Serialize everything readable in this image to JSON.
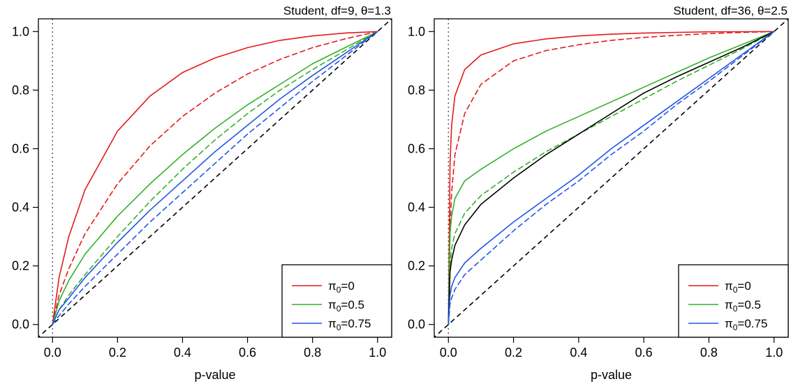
{
  "chart_data": [
    {
      "type": "line",
      "title": "Student, df=9, θ=1.3",
      "xlabel": "p-value",
      "ylabel": "",
      "xlim": [
        0,
        1
      ],
      "ylim": [
        0,
        1
      ],
      "xticks": [
        "0.0",
        "0.2",
        "0.4",
        "0.6",
        "0.8",
        "1.0"
      ],
      "yticks": [
        "0.0",
        "0.2",
        "0.4",
        "0.6",
        "0.8",
        "1.0"
      ],
      "grid": false,
      "legend_position": "bottom-right",
      "reference_lines": [
        {
          "kind": "diagonal",
          "style": "dashed",
          "color": "#000000"
        },
        {
          "kind": "vertical",
          "x": 0,
          "style": "dotted",
          "color": "#555555"
        }
      ],
      "x": [
        0,
        0.02,
        0.05,
        0.1,
        0.2,
        0.3,
        0.4,
        0.5,
        0.6,
        0.7,
        0.8,
        0.9,
        1.0
      ],
      "series": [
        {
          "legend": "0",
          "color": "#e41a1c",
          "style": "solid",
          "values": [
            0,
            0.16,
            0.3,
            0.46,
            0.66,
            0.78,
            0.86,
            0.91,
            0.945,
            0.97,
            0.985,
            0.995,
            1.0
          ]
        },
        {
          "legend": "",
          "color": "#e41a1c",
          "style": "dashed",
          "values": [
            0,
            0.1,
            0.19,
            0.31,
            0.48,
            0.61,
            0.71,
            0.79,
            0.855,
            0.905,
            0.945,
            0.975,
            1.0
          ]
        },
        {
          "legend": "0.5",
          "color": "#33b02a",
          "style": "solid",
          "values": [
            0,
            0.08,
            0.15,
            0.24,
            0.37,
            0.48,
            0.58,
            0.67,
            0.75,
            0.82,
            0.89,
            0.945,
            1.0
          ]
        },
        {
          "legend": "",
          "color": "#33b02a",
          "style": "dashed",
          "values": [
            0,
            0.05,
            0.1,
            0.17,
            0.3,
            0.42,
            0.53,
            0.63,
            0.72,
            0.8,
            0.87,
            0.935,
            1.0
          ]
        },
        {
          "legend": "0.75",
          "color": "#2255e6",
          "style": "solid",
          "values": [
            0,
            0.05,
            0.09,
            0.16,
            0.28,
            0.39,
            0.49,
            0.59,
            0.68,
            0.77,
            0.85,
            0.925,
            1.0
          ]
        },
        {
          "legend": "",
          "color": "#2255e6",
          "style": "dashed",
          "values": [
            0,
            0.03,
            0.07,
            0.13,
            0.24,
            0.35,
            0.45,
            0.55,
            0.65,
            0.74,
            0.83,
            0.915,
            1.0
          ]
        }
      ]
    },
    {
      "type": "line",
      "title": "Student, df=36, θ=2.5",
      "xlabel": "p-value",
      "ylabel": "",
      "xlim": [
        0,
        1
      ],
      "ylim": [
        0,
        1
      ],
      "xticks": [
        "0.0",
        "0.2",
        "0.4",
        "0.6",
        "0.8",
        "1.0"
      ],
      "yticks": [
        "0.0",
        "0.2",
        "0.4",
        "0.6",
        "0.8",
        "1.0"
      ],
      "grid": false,
      "legend_position": "bottom-right",
      "reference_lines": [
        {
          "kind": "diagonal",
          "style": "dashed",
          "color": "#000000"
        },
        {
          "kind": "vertical",
          "x": 0,
          "style": "dotted",
          "color": "#555555"
        }
      ],
      "x": [
        0,
        0.005,
        0.01,
        0.02,
        0.05,
        0.1,
        0.2,
        0.3,
        0.4,
        0.5,
        0.6,
        0.7,
        0.8,
        0.9,
        1.0
      ],
      "series": [
        {
          "legend": "0",
          "color": "#e41a1c",
          "style": "solid",
          "values": [
            0,
            0.55,
            0.68,
            0.78,
            0.87,
            0.92,
            0.958,
            0.975,
            0.985,
            0.991,
            0.995,
            0.997,
            0.999,
            0.9995,
            1.0
          ]
        },
        {
          "legend": "",
          "color": "#e41a1c",
          "style": "dashed",
          "values": [
            0,
            0.32,
            0.45,
            0.58,
            0.72,
            0.82,
            0.9,
            0.935,
            0.955,
            0.97,
            0.98,
            0.987,
            0.993,
            0.997,
            1.0
          ]
        },
        {
          "legend": "0.5",
          "color": "#33b02a",
          "style": "solid",
          "values": [
            0,
            0.31,
            0.37,
            0.43,
            0.49,
            0.53,
            0.6,
            0.66,
            0.71,
            0.76,
            0.81,
            0.86,
            0.91,
            0.955,
            1.0
          ]
        },
        {
          "legend": "",
          "color": "#33b02a",
          "style": "dashed",
          "values": [
            0,
            0.2,
            0.26,
            0.31,
            0.38,
            0.44,
            0.52,
            0.59,
            0.65,
            0.71,
            0.77,
            0.83,
            0.885,
            0.94,
            1.0
          ]
        },
        {
          "legend": "",
          "color": "#000000",
          "style": "solid",
          "values": [
            0,
            0.18,
            0.22,
            0.27,
            0.34,
            0.41,
            0.5,
            0.58,
            0.65,
            0.72,
            0.79,
            0.845,
            0.895,
            0.945,
            1.0
          ]
        },
        {
          "legend": "0.75",
          "color": "#2255e6",
          "style": "solid",
          "values": [
            0,
            0.1,
            0.13,
            0.16,
            0.21,
            0.26,
            0.35,
            0.43,
            0.51,
            0.6,
            0.68,
            0.76,
            0.84,
            0.92,
            1.0
          ]
        },
        {
          "legend": "",
          "color": "#2255e6",
          "style": "dashed",
          "values": [
            0,
            0.07,
            0.09,
            0.12,
            0.17,
            0.22,
            0.32,
            0.41,
            0.49,
            0.58,
            0.66,
            0.75,
            0.83,
            0.915,
            1.0
          ]
        }
      ]
    }
  ],
  "legend": {
    "symbol": "π",
    "subscript": "0",
    "items": [
      {
        "value": "0",
        "color": "#e41a1c"
      },
      {
        "value": "0.5",
        "color": "#33b02a"
      },
      {
        "value": "0.75",
        "color": "#2255e6"
      }
    ]
  }
}
